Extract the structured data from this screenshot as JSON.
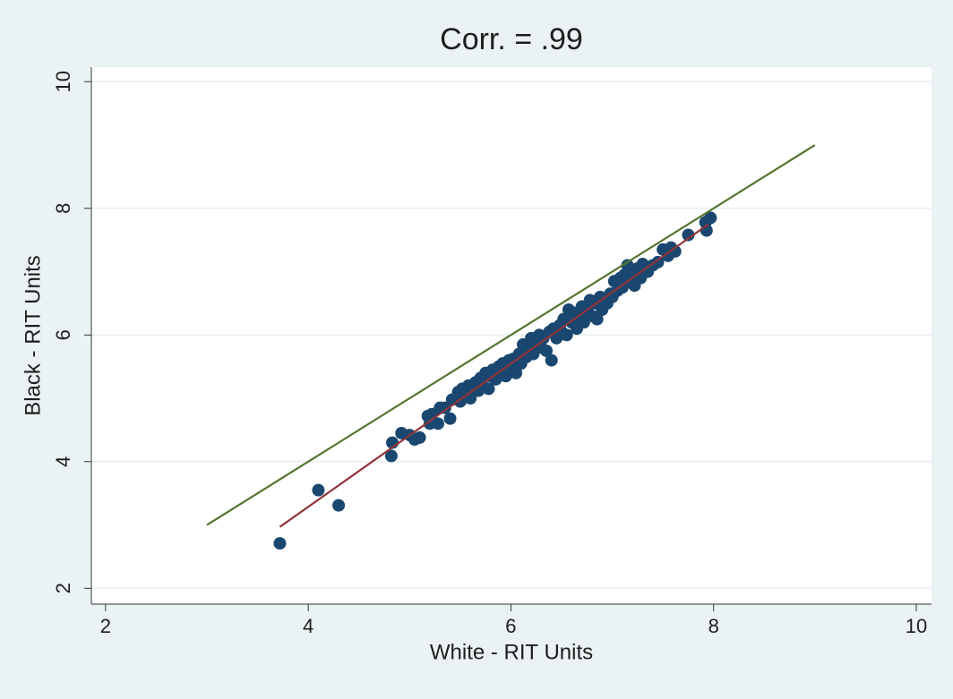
{
  "chart_data": {
    "type": "scatter",
    "title": "Corr. = .99",
    "x_label": "White - RIT Units",
    "y_label": "Black - RIT Units",
    "xlim": [
      1.86,
      10.15
    ],
    "ylim": [
      1.75,
      10.23
    ],
    "xticks": [
      2,
      4,
      6,
      8,
      10
    ],
    "yticks": [
      2,
      4,
      6,
      8,
      10
    ],
    "grid": true,
    "points": {
      "color": "#1a476f",
      "x": [
        3.72,
        4.1,
        4.3,
        4.82,
        4.83,
        4.92,
        5.0,
        5.05,
        5.1,
        5.18,
        5.22,
        5.28,
        5.3,
        5.2,
        5.35,
        5.4,
        5.42,
        5.48,
        5.5,
        5.52,
        5.55,
        5.58,
        5.6,
        5.62,
        5.65,
        5.68,
        5.7,
        5.72,
        5.75,
        5.78,
        5.8,
        5.82,
        5.85,
        5.88,
        5.9,
        5.92,
        5.95,
        5.98,
        6.0,
        6.02,
        6.05,
        6.08,
        6.1,
        6.12,
        6.15,
        6.18,
        6.2,
        6.22,
        6.25,
        6.28,
        6.3,
        6.32,
        6.35,
        6.38,
        6.4,
        6.42,
        6.45,
        6.48,
        6.5,
        6.52,
        6.55,
        6.57,
        6.6,
        6.62,
        6.65,
        6.68,
        6.7,
        6.72,
        6.75,
        6.78,
        6.8,
        6.82,
        6.85,
        6.88,
        6.9,
        6.92,
        6.95,
        6.98,
        7.0,
        7.02,
        7.05,
        7.08,
        7.1,
        7.12,
        7.15,
        7.18,
        7.2,
        7.22,
        7.25,
        7.28,
        7.3,
        7.35,
        7.4,
        7.45,
        7.5,
        7.55,
        7.58,
        7.62,
        7.75,
        7.93,
        7.92,
        7.97
      ],
      "y": [
        2.71,
        3.55,
        3.31,
        4.09,
        4.3,
        4.45,
        4.42,
        4.35,
        4.38,
        4.72,
        4.75,
        4.6,
        4.85,
        4.6,
        4.85,
        4.68,
        4.98,
        5.1,
        4.95,
        5.15,
        5.05,
        5.2,
        5.0,
        5.18,
        5.25,
        5.12,
        5.32,
        5.2,
        5.4,
        5.15,
        5.35,
        5.45,
        5.3,
        5.5,
        5.4,
        5.55,
        5.35,
        5.6,
        5.48,
        5.62,
        5.4,
        5.7,
        5.55,
        5.85,
        5.65,
        5.78,
        5.95,
        5.7,
        5.88,
        6.0,
        5.8,
        5.95,
        5.75,
        6.05,
        5.6,
        6.1,
        5.95,
        6.15,
        6.05,
        6.25,
        6.0,
        6.4,
        6.2,
        6.35,
        6.1,
        6.3,
        6.45,
        6.2,
        6.4,
        6.55,
        6.3,
        6.5,
        6.25,
        6.6,
        6.4,
        6.55,
        6.5,
        6.65,
        6.6,
        6.85,
        6.7,
        6.9,
        6.75,
        6.95,
        7.1,
        6.85,
        7.0,
        6.78,
        7.05,
        6.9,
        7.12,
        7.0,
        7.1,
        7.15,
        7.35,
        7.25,
        7.38,
        7.32,
        7.58,
        7.65,
        7.78,
        7.85
      ]
    },
    "lines": [
      {
        "color": "#55752f",
        "x": [
          3,
          9
        ],
        "y": [
          3,
          9
        ]
      },
      {
        "color": "#90353b",
        "x": [
          3.72,
          7.95
        ],
        "y": [
          2.97,
          7.75
        ]
      }
    ]
  }
}
